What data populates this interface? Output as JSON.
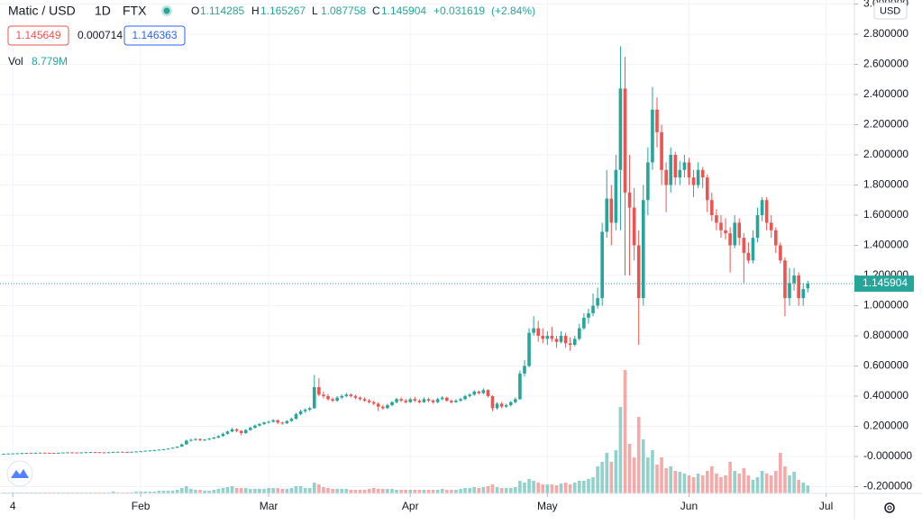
{
  "chart_data": {
    "type": "candlestick",
    "title": "Matic / USD",
    "interval": "1D",
    "exchange": "FTX",
    "currency": "USD",
    "legend": [
      {
        "label": "O",
        "value": 1.114285
      },
      {
        "label": "H",
        "value": 1.165267
      },
      {
        "label": "L",
        "value": 1.087758
      },
      {
        "label": "C",
        "value": 1.145904
      }
    ],
    "change": {
      "value": 0.031619,
      "label": "+0.031619"
    },
    "change_pct": {
      "value": 2.84,
      "label": "(+2.84%)"
    },
    "bid": 1.145649,
    "spread": 0.000714,
    "ask": 1.146363,
    "volume_label": "Vol",
    "last_volume": {
      "value": 8.779,
      "label": "8.779M"
    },
    "up_color": "#26a69a",
    "down_color": "#ef5350",
    "grid": true,
    "ylim": [
      -0.245,
      3.027
    ],
    "yticks": [
      {
        "value": -0.2,
        "label": "-0.200000"
      },
      {
        "value": 0,
        "label": "-0.000000"
      },
      {
        "value": 0.2,
        "label": "0.200000"
      },
      {
        "value": 0.4,
        "label": "0.400000"
      },
      {
        "value": 0.6,
        "label": "0.600000"
      },
      {
        "value": 0.8,
        "label": "0.800000"
      },
      {
        "value": 1.0,
        "label": "1.000000"
      },
      {
        "value": 1.2,
        "label": "1.200000"
      },
      {
        "value": 1.4,
        "label": "1.400000"
      },
      {
        "value": 1.6,
        "label": "1.600000"
      },
      {
        "value": 1.8,
        "label": "1.800000"
      },
      {
        "value": 2.0,
        "label": "2.000000"
      },
      {
        "value": 2.2,
        "label": "2.200000"
      },
      {
        "value": 2.4,
        "label": "2.400000"
      },
      {
        "value": 2.6,
        "label": "2.600000"
      },
      {
        "value": 2.8,
        "label": "2.800000"
      },
      {
        "value": 3.0,
        "label": "3.000000"
      }
    ],
    "xlim": [
      -0.8,
      186.2
    ],
    "xticks": [
      {
        "value": 2,
        "label": "4"
      },
      {
        "value": 30,
        "label": "Feb"
      },
      {
        "value": 58,
        "label": "Mar"
      },
      {
        "value": 89,
        "label": "Apr"
      },
      {
        "value": 119,
        "label": "May"
      },
      {
        "value": 150,
        "label": "Jun"
      },
      {
        "value": 180,
        "label": "Jul"
      }
    ],
    "ohlc": [
      [
        0.017,
        0.019,
        0.016,
        0.018
      ],
      [
        0.018,
        0.02,
        0.017,
        0.019
      ],
      [
        0.019,
        0.021,
        0.018,
        0.02
      ],
      [
        0.02,
        0.022,
        0.019,
        0.021
      ],
      [
        0.021,
        0.023,
        0.02,
        0.022
      ],
      [
        0.022,
        0.024,
        0.021,
        0.023
      ],
      [
        0.023,
        0.024,
        0.021,
        0.022
      ],
      [
        0.022,
        0.025,
        0.021,
        0.024
      ],
      [
        0.024,
        0.026,
        0.023,
        0.025
      ],
      [
        0.025,
        0.026,
        0.023,
        0.024
      ],
      [
        0.024,
        0.025,
        0.022,
        0.023
      ],
      [
        0.023,
        0.024,
        0.021,
        0.022
      ],
      [
        0.022,
        0.025,
        0.021,
        0.024
      ],
      [
        0.024,
        0.027,
        0.023,
        0.026
      ],
      [
        0.026,
        0.028,
        0.025,
        0.027
      ],
      [
        0.027,
        0.028,
        0.025,
        0.026
      ],
      [
        0.026,
        0.027,
        0.024,
        0.025
      ],
      [
        0.025,
        0.028,
        0.024,
        0.027
      ],
      [
        0.027,
        0.029,
        0.026,
        0.028
      ],
      [
        0.028,
        0.03,
        0.027,
        0.029
      ],
      [
        0.029,
        0.03,
        0.027,
        0.028
      ],
      [
        0.028,
        0.029,
        0.026,
        0.027
      ],
      [
        0.027,
        0.028,
        0.025,
        0.026
      ],
      [
        0.026,
        0.029,
        0.025,
        0.028
      ],
      [
        0.028,
        0.031,
        0.027,
        0.03
      ],
      [
        0.03,
        0.032,
        0.029,
        0.031
      ],
      [
        0.031,
        0.032,
        0.029,
        0.03
      ],
      [
        0.03,
        0.031,
        0.028,
        0.029
      ],
      [
        0.029,
        0.032,
        0.028,
        0.031
      ],
      [
        0.031,
        0.034,
        0.03,
        0.033
      ],
      [
        0.033,
        0.036,
        0.032,
        0.035
      ],
      [
        0.035,
        0.039,
        0.034,
        0.038
      ],
      [
        0.038,
        0.041,
        0.037,
        0.04
      ],
      [
        0.04,
        0.043,
        0.039,
        0.042
      ],
      [
        0.042,
        0.046,
        0.041,
        0.045
      ],
      [
        0.045,
        0.049,
        0.044,
        0.048
      ],
      [
        0.048,
        0.054,
        0.047,
        0.052
      ],
      [
        0.052,
        0.06,
        0.051,
        0.058
      ],
      [
        0.058,
        0.068,
        0.056,
        0.065
      ],
      [
        0.065,
        0.085,
        0.063,
        0.08
      ],
      [
        0.08,
        0.112,
        0.078,
        0.105
      ],
      [
        0.105,
        0.118,
        0.098,
        0.11
      ],
      [
        0.11,
        0.122,
        0.104,
        0.115
      ],
      [
        0.115,
        0.12,
        0.1,
        0.108
      ],
      [
        0.108,
        0.116,
        0.102,
        0.112
      ],
      [
        0.112,
        0.122,
        0.108,
        0.118
      ],
      [
        0.118,
        0.13,
        0.114,
        0.125
      ],
      [
        0.125,
        0.14,
        0.12,
        0.135
      ],
      [
        0.135,
        0.158,
        0.13,
        0.15
      ],
      [
        0.15,
        0.172,
        0.145,
        0.165
      ],
      [
        0.165,
        0.19,
        0.16,
        0.18
      ],
      [
        0.18,
        0.186,
        0.16,
        0.17
      ],
      [
        0.17,
        0.175,
        0.14,
        0.155
      ],
      [
        0.155,
        0.182,
        0.15,
        0.175
      ],
      [
        0.175,
        0.198,
        0.17,
        0.19
      ],
      [
        0.19,
        0.212,
        0.185,
        0.205
      ],
      [
        0.205,
        0.222,
        0.198,
        0.215
      ],
      [
        0.215,
        0.232,
        0.208,
        0.225
      ],
      [
        0.225,
        0.238,
        0.218,
        0.23
      ],
      [
        0.23,
        0.248,
        0.224,
        0.24
      ],
      [
        0.24,
        0.245,
        0.215,
        0.225
      ],
      [
        0.225,
        0.23,
        0.21,
        0.22
      ],
      [
        0.22,
        0.24,
        0.215,
        0.235
      ],
      [
        0.235,
        0.258,
        0.23,
        0.25
      ],
      [
        0.25,
        0.29,
        0.245,
        0.28
      ],
      [
        0.28,
        0.31,
        0.272,
        0.3
      ],
      [
        0.3,
        0.318,
        0.29,
        0.31
      ],
      [
        0.31,
        0.33,
        0.3,
        0.32
      ],
      [
        0.32,
        0.54,
        0.315,
        0.46
      ],
      [
        0.46,
        0.52,
        0.4,
        0.41
      ],
      [
        0.41,
        0.43,
        0.385,
        0.4
      ],
      [
        0.4,
        0.415,
        0.37,
        0.38
      ],
      [
        0.38,
        0.392,
        0.36,
        0.37
      ],
      [
        0.37,
        0.4,
        0.362,
        0.39
      ],
      [
        0.39,
        0.412,
        0.38,
        0.4
      ],
      [
        0.4,
        0.422,
        0.392,
        0.41
      ],
      [
        0.41,
        0.418,
        0.39,
        0.4
      ],
      [
        0.4,
        0.41,
        0.38,
        0.39
      ],
      [
        0.39,
        0.398,
        0.37,
        0.38
      ],
      [
        0.38,
        0.392,
        0.362,
        0.37
      ],
      [
        0.37,
        0.382,
        0.35,
        0.36
      ],
      [
        0.36,
        0.37,
        0.34,
        0.35
      ],
      [
        0.35,
        0.36,
        0.3,
        0.33
      ],
      [
        0.33,
        0.342,
        0.31,
        0.32
      ],
      [
        0.32,
        0.35,
        0.315,
        0.34
      ],
      [
        0.34,
        0.368,
        0.332,
        0.36
      ],
      [
        0.36,
        0.39,
        0.352,
        0.38
      ],
      [
        0.38,
        0.392,
        0.36,
        0.37
      ],
      [
        0.37,
        0.382,
        0.35,
        0.36
      ],
      [
        0.36,
        0.39,
        0.355,
        0.38
      ],
      [
        0.38,
        0.395,
        0.362,
        0.37
      ],
      [
        0.37,
        0.38,
        0.35,
        0.36
      ],
      [
        0.36,
        0.392,
        0.355,
        0.38
      ],
      [
        0.38,
        0.39,
        0.36,
        0.37
      ],
      [
        0.37,
        0.378,
        0.35,
        0.36
      ],
      [
        0.36,
        0.39,
        0.352,
        0.38
      ],
      [
        0.38,
        0.4,
        0.372,
        0.39
      ],
      [
        0.39,
        0.396,
        0.362,
        0.37
      ],
      [
        0.37,
        0.378,
        0.35,
        0.36
      ],
      [
        0.36,
        0.38,
        0.355,
        0.37
      ],
      [
        0.37,
        0.39,
        0.362,
        0.38
      ],
      [
        0.38,
        0.41,
        0.372,
        0.4
      ],
      [
        0.4,
        0.42,
        0.39,
        0.41
      ],
      [
        0.41,
        0.44,
        0.402,
        0.43
      ],
      [
        0.43,
        0.438,
        0.41,
        0.42
      ],
      [
        0.42,
        0.452,
        0.412,
        0.44
      ],
      [
        0.44,
        0.446,
        0.39,
        0.4
      ],
      [
        0.4,
        0.405,
        0.3,
        0.32
      ],
      [
        0.32,
        0.36,
        0.31,
        0.35
      ],
      [
        0.35,
        0.362,
        0.32,
        0.33
      ],
      [
        0.33,
        0.35,
        0.322,
        0.34
      ],
      [
        0.34,
        0.368,
        0.33,
        0.36
      ],
      [
        0.36,
        0.392,
        0.35,
        0.38
      ],
      [
        0.38,
        0.57,
        0.375,
        0.55
      ],
      [
        0.55,
        0.64,
        0.53,
        0.6
      ],
      [
        0.6,
        0.85,
        0.59,
        0.82
      ],
      [
        0.82,
        0.93,
        0.8,
        0.85
      ],
      [
        0.85,
        0.9,
        0.76,
        0.8
      ],
      [
        0.8,
        0.85,
        0.75,
        0.78
      ],
      [
        0.78,
        0.83,
        0.74,
        0.8
      ],
      [
        0.8,
        0.86,
        0.76,
        0.78
      ],
      [
        0.78,
        0.8,
        0.72,
        0.76
      ],
      [
        0.76,
        0.83,
        0.75,
        0.8
      ],
      [
        0.8,
        0.82,
        0.72,
        0.75
      ],
      [
        0.75,
        0.79,
        0.7,
        0.74
      ],
      [
        0.74,
        0.8,
        0.73,
        0.78
      ],
      [
        0.78,
        0.88,
        0.77,
        0.85
      ],
      [
        0.85,
        0.95,
        0.84,
        0.92
      ],
      [
        0.92,
        0.98,
        0.88,
        0.95
      ],
      [
        0.95,
        1.08,
        0.93,
        1.0
      ],
      [
        1.0,
        1.12,
        0.98,
        1.05
      ],
      [
        1.05,
        1.55,
        1.0,
        1.49
      ],
      [
        1.49,
        1.9,
        1.45,
        1.71
      ],
      [
        1.71,
        1.8,
        1.4,
        1.55
      ],
      [
        1.55,
        2.0,
        1.5,
        1.9
      ],
      [
        1.9,
        2.72,
        1.5,
        2.44
      ],
      [
        2.44,
        2.65,
        1.2,
        1.75
      ],
      [
        1.75,
        2.0,
        1.2,
        1.65
      ],
      [
        1.65,
        1.78,
        1.3,
        1.4
      ],
      [
        1.4,
        1.5,
        0.74,
        1.05
      ],
      [
        1.05,
        1.8,
        1.0,
        1.7
      ],
      [
        1.7,
        2.05,
        1.6,
        1.95
      ],
      [
        1.95,
        2.45,
        1.9,
        2.3
      ],
      [
        2.3,
        2.38,
        2.05,
        2.15
      ],
      [
        2.15,
        2.2,
        1.8,
        1.9
      ],
      [
        1.9,
        1.95,
        1.62,
        1.8
      ],
      [
        1.8,
        2.05,
        1.75,
        2.0
      ],
      [
        2.0,
        2.02,
        1.8,
        1.85
      ],
      [
        1.85,
        1.96,
        1.8,
        1.9
      ],
      [
        1.9,
        2.0,
        1.85,
        1.95
      ],
      [
        1.95,
        1.98,
        1.8,
        1.85
      ],
      [
        1.85,
        1.9,
        1.72,
        1.8
      ],
      [
        1.8,
        1.95,
        1.78,
        1.9
      ],
      [
        1.9,
        1.92,
        1.78,
        1.85
      ],
      [
        1.85,
        1.87,
        1.62,
        1.7
      ],
      [
        1.7,
        1.75,
        1.56,
        1.6
      ],
      [
        1.6,
        1.64,
        1.5,
        1.55
      ],
      [
        1.55,
        1.6,
        1.45,
        1.5
      ],
      [
        1.5,
        1.58,
        1.44,
        1.48
      ],
      [
        1.48,
        1.52,
        1.22,
        1.4
      ],
      [
        1.4,
        1.6,
        1.38,
        1.55
      ],
      [
        1.55,
        1.58,
        1.4,
        1.45
      ],
      [
        1.45,
        1.48,
        1.15,
        1.35
      ],
      [
        1.35,
        1.42,
        1.28,
        1.3
      ],
      [
        1.3,
        1.5,
        1.28,
        1.45
      ],
      [
        1.45,
        1.65,
        1.42,
        1.6
      ],
      [
        1.6,
        1.72,
        1.56,
        1.7
      ],
      [
        1.7,
        1.72,
        1.5,
        1.55
      ],
      [
        1.55,
        1.6,
        1.45,
        1.5
      ],
      [
        1.5,
        1.52,
        1.35,
        1.4
      ],
      [
        1.4,
        1.42,
        1.28,
        1.3
      ],
      [
        1.3,
        1.32,
        0.93,
        1.05
      ],
      [
        1.05,
        1.25,
        1.0,
        1.15
      ],
      [
        1.15,
        1.25,
        1.1,
        1.2
      ],
      [
        1.2,
        1.22,
        1.0,
        1.05
      ],
      [
        1.05,
        1.15,
        1.0,
        1.11
      ],
      [
        1.114285,
        1.165267,
        1.087758,
        1.145904
      ]
    ],
    "volume": [
      1,
      1,
      1,
      1,
      1,
      1,
      1,
      1,
      1,
      1,
      1,
      1,
      1,
      1,
      1,
      1,
      1,
      1,
      1,
      1,
      1,
      1,
      1,
      1,
      2,
      1,
      1,
      1,
      1,
      2,
      2,
      2,
      2,
      2,
      3,
      3,
      3,
      3,
      4,
      6,
      8,
      5,
      4,
      4,
      3,
      3,
      4,
      5,
      6,
      7,
      8,
      6,
      6,
      6,
      5,
      5,
      5,
      5,
      6,
      6,
      6,
      5,
      5,
      6,
      8,
      8,
      6,
      6,
      12,
      10,
      7,
      6,
      5,
      5,
      5,
      5,
      4,
      4,
      4,
      4,
      5,
      6,
      5,
      5,
      5,
      5,
      4,
      4,
      4,
      4,
      4,
      4,
      4,
      4,
      4,
      4,
      5,
      4,
      4,
      4,
      5,
      6,
      6,
      7,
      6,
      7,
      8,
      10,
      7,
      6,
      6,
      6,
      7,
      14,
      12,
      16,
      14,
      12,
      10,
      10,
      10,
      9,
      11,
      12,
      10,
      12,
      14,
      14,
      16,
      18,
      30,
      35,
      45,
      35,
      48,
      96,
      137,
      55,
      40,
      85,
      60,
      40,
      48,
      32,
      40,
      28,
      30,
      25,
      24,
      22,
      20,
      18,
      22,
      20,
      25,
      30,
      22,
      18,
      20,
      35,
      25,
      22,
      28,
      20,
      15,
      18,
      25,
      22,
      20,
      25,
      45,
      30,
      20,
      24,
      15,
      12,
      8.779
    ]
  }
}
